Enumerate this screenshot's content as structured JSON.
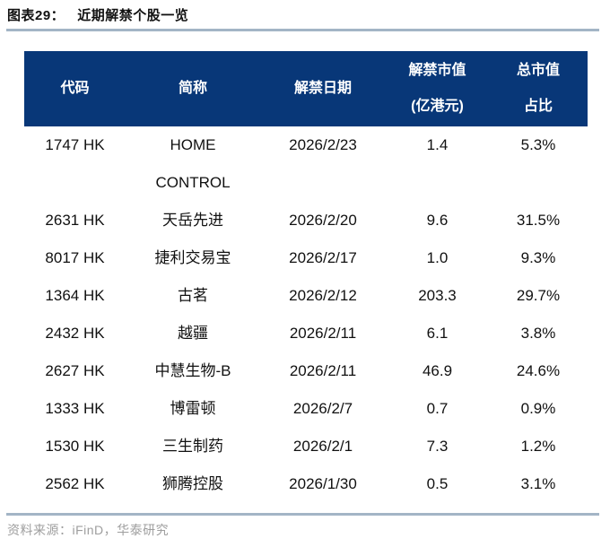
{
  "figure": {
    "label": "图表29：",
    "title": "近期解禁个股一览"
  },
  "table": {
    "columns": [
      "代码",
      "简称",
      "解禁日期",
      "解禁市值\n(亿港元)",
      "总市值\n占比"
    ],
    "rows": [
      {
        "code": "1747 HK",
        "name": "HOME\nCONTROL",
        "date": "2026/2/23",
        "value": "1.4",
        "ratio": "5.3%"
      },
      {
        "code": "2631 HK",
        "name": "天岳先进",
        "date": "2026/2/20",
        "value": "9.6",
        "ratio": "31.5%"
      },
      {
        "code": "8017 HK",
        "name": "捷利交易宝",
        "date": "2026/2/17",
        "value": "1.0",
        "ratio": "9.3%"
      },
      {
        "code": "1364 HK",
        "name": "古茗",
        "date": "2026/2/12",
        "value": "203.3",
        "ratio": "29.7%"
      },
      {
        "code": "2432 HK",
        "name": "越疆",
        "date": "2026/2/11",
        "value": "6.1",
        "ratio": "3.8%"
      },
      {
        "code": "2627 HK",
        "name": "中慧生物-B",
        "date": "2026/2/11",
        "value": "46.9",
        "ratio": "24.6%"
      },
      {
        "code": "1333 HK",
        "name": "博雷顿",
        "date": "2026/2/7",
        "value": "0.7",
        "ratio": "0.9%"
      },
      {
        "code": "1530 HK",
        "name": "三生制药",
        "date": "2026/2/1",
        "value": "7.3",
        "ratio": "1.2%"
      },
      {
        "code": "2562 HK",
        "name": "狮腾控股",
        "date": "2026/1/30",
        "value": "0.5",
        "ratio": "3.1%"
      }
    ]
  },
  "source": "资料来源：iFinD，华泰研究",
  "colors": {
    "header_bg": "#083778",
    "header_text": "#ffffff",
    "rule": "#a3b5c6",
    "source_text": "#9e9e9e"
  }
}
